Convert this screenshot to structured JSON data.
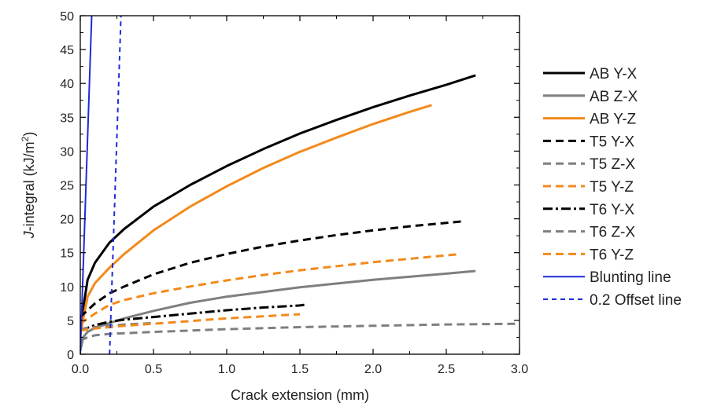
{
  "chart_data": {
    "type": "line",
    "xlabel": "Crack extension (mm)",
    "ylabel": {
      "italic": "J",
      "text": "-integral (kJ/m",
      "sup": "2",
      "close": ")"
    },
    "xlim": [
      0,
      3.0
    ],
    "ylim": [
      0,
      50
    ],
    "xticks": [
      "0.0",
      "0.5",
      "1.0",
      "1.5",
      "2.0",
      "2.5",
      "3.0"
    ],
    "yticks": [
      "0",
      "5",
      "10",
      "15",
      "20",
      "25",
      "30",
      "35",
      "40",
      "45",
      "50"
    ],
    "grid": false,
    "legend_position": "right",
    "series": [
      {
        "name": "AB Y-X",
        "color": "#000000",
        "dash": "solid",
        "x": [
          0.0,
          0.05,
          0.1,
          0.2,
          0.3,
          0.5,
          0.75,
          1.0,
          1.25,
          1.5,
          1.75,
          2.0,
          2.25,
          2.5,
          2.7
        ],
        "y": [
          4.0,
          11.0,
          13.5,
          16.5,
          18.5,
          21.8,
          25.0,
          27.8,
          30.3,
          32.6,
          34.6,
          36.5,
          38.2,
          39.8,
          41.2
        ]
      },
      {
        "name": "AB Z-X",
        "color": "#7f7f7f",
        "dash": "solid",
        "x": [
          0.0,
          0.02,
          0.05,
          0.1,
          0.2,
          0.3,
          0.5,
          0.75,
          1.0,
          1.5,
          2.0,
          2.5,
          2.7
        ],
        "y": [
          0.5,
          2.5,
          3.3,
          3.9,
          4.6,
          5.3,
          6.4,
          7.6,
          8.5,
          9.9,
          11.0,
          11.9,
          12.3
        ]
      },
      {
        "name": "AB Y-Z",
        "color": "#f28a1c",
        "dash": "solid",
        "x": [
          0.0,
          0.05,
          0.1,
          0.2,
          0.3,
          0.5,
          0.75,
          1.0,
          1.25,
          1.5,
          1.75,
          2.0,
          2.25,
          2.4
        ],
        "y": [
          3.0,
          8.5,
          10.5,
          12.8,
          14.8,
          18.3,
          21.8,
          24.8,
          27.5,
          29.9,
          32.0,
          34.0,
          35.8,
          36.8
        ]
      },
      {
        "name": "T5 Y-X",
        "color": "#000000",
        "dash": "dashed",
        "x": [
          0.0,
          0.1,
          0.2,
          0.3,
          0.5,
          0.75,
          1.0,
          1.25,
          1.5,
          1.75,
          2.0,
          2.25,
          2.5,
          2.6
        ],
        "y": [
          5.5,
          7.5,
          9.0,
          10.0,
          11.8,
          13.5,
          14.8,
          15.9,
          16.8,
          17.6,
          18.3,
          18.9,
          19.4,
          19.6
        ]
      },
      {
        "name": "T5 Z-X",
        "color": "#7f7f7f",
        "dash": "dashed",
        "x": [
          0.0,
          0.05,
          0.1,
          0.2,
          0.5,
          1.0,
          1.5,
          2.0,
          2.5,
          3.0
        ],
        "y": [
          2.0,
          2.5,
          2.8,
          3.0,
          3.3,
          3.7,
          4.0,
          4.2,
          4.4,
          4.5
        ]
      },
      {
        "name": "T5 Y-Z",
        "color": "#f28a1c",
        "dash": "dashed",
        "x": [
          0.0,
          0.1,
          0.2,
          0.3,
          0.5,
          0.75,
          1.0,
          1.25,
          1.5,
          1.75,
          2.0,
          2.25,
          2.5,
          2.6
        ],
        "y": [
          4.5,
          6.0,
          7.3,
          8.0,
          9.0,
          10.0,
          10.9,
          11.7,
          12.4,
          13.0,
          13.6,
          14.1,
          14.6,
          14.8
        ]
      },
      {
        "name": "T6 Y-X",
        "color": "#000000",
        "dash": "dashdot",
        "x": [
          0.0,
          0.1,
          0.2,
          0.3,
          0.5,
          0.75,
          1.0,
          1.25,
          1.5,
          1.53
        ],
        "y": [
          3.5,
          4.3,
          4.8,
          5.1,
          5.5,
          6.0,
          6.5,
          6.9,
          7.2,
          7.3
        ]
      },
      {
        "name": "T6 Z-X",
        "color": "#7f7f7f",
        "dash": "dashed",
        "x": [
          0.0,
          0.05,
          0.1,
          0.2,
          0.3,
          0.5
        ],
        "y": [
          3.7,
          3.9,
          4.0,
          4.2,
          4.4,
          4.6
        ]
      },
      {
        "name": "T6 Y-Z",
        "color": "#f28a1c",
        "dash": "dashed",
        "x": [
          0.0,
          0.1,
          0.2,
          0.3,
          0.5,
          0.75,
          1.0,
          1.25,
          1.5
        ],
        "y": [
          3.5,
          3.8,
          4.0,
          4.2,
          4.5,
          4.9,
          5.3,
          5.6,
          5.9
        ]
      },
      {
        "name": "Blunting line",
        "color": "#1f2bd6",
        "dash": "solid",
        "x": [
          0.0,
          0.078
        ],
        "y": [
          0.0,
          50.0
        ]
      },
      {
        "name": "0.2 Offset line",
        "color": "#1f2bd6",
        "dash": "dashed",
        "x": [
          0.2,
          0.278
        ],
        "y": [
          0.0,
          50.0
        ]
      }
    ]
  }
}
